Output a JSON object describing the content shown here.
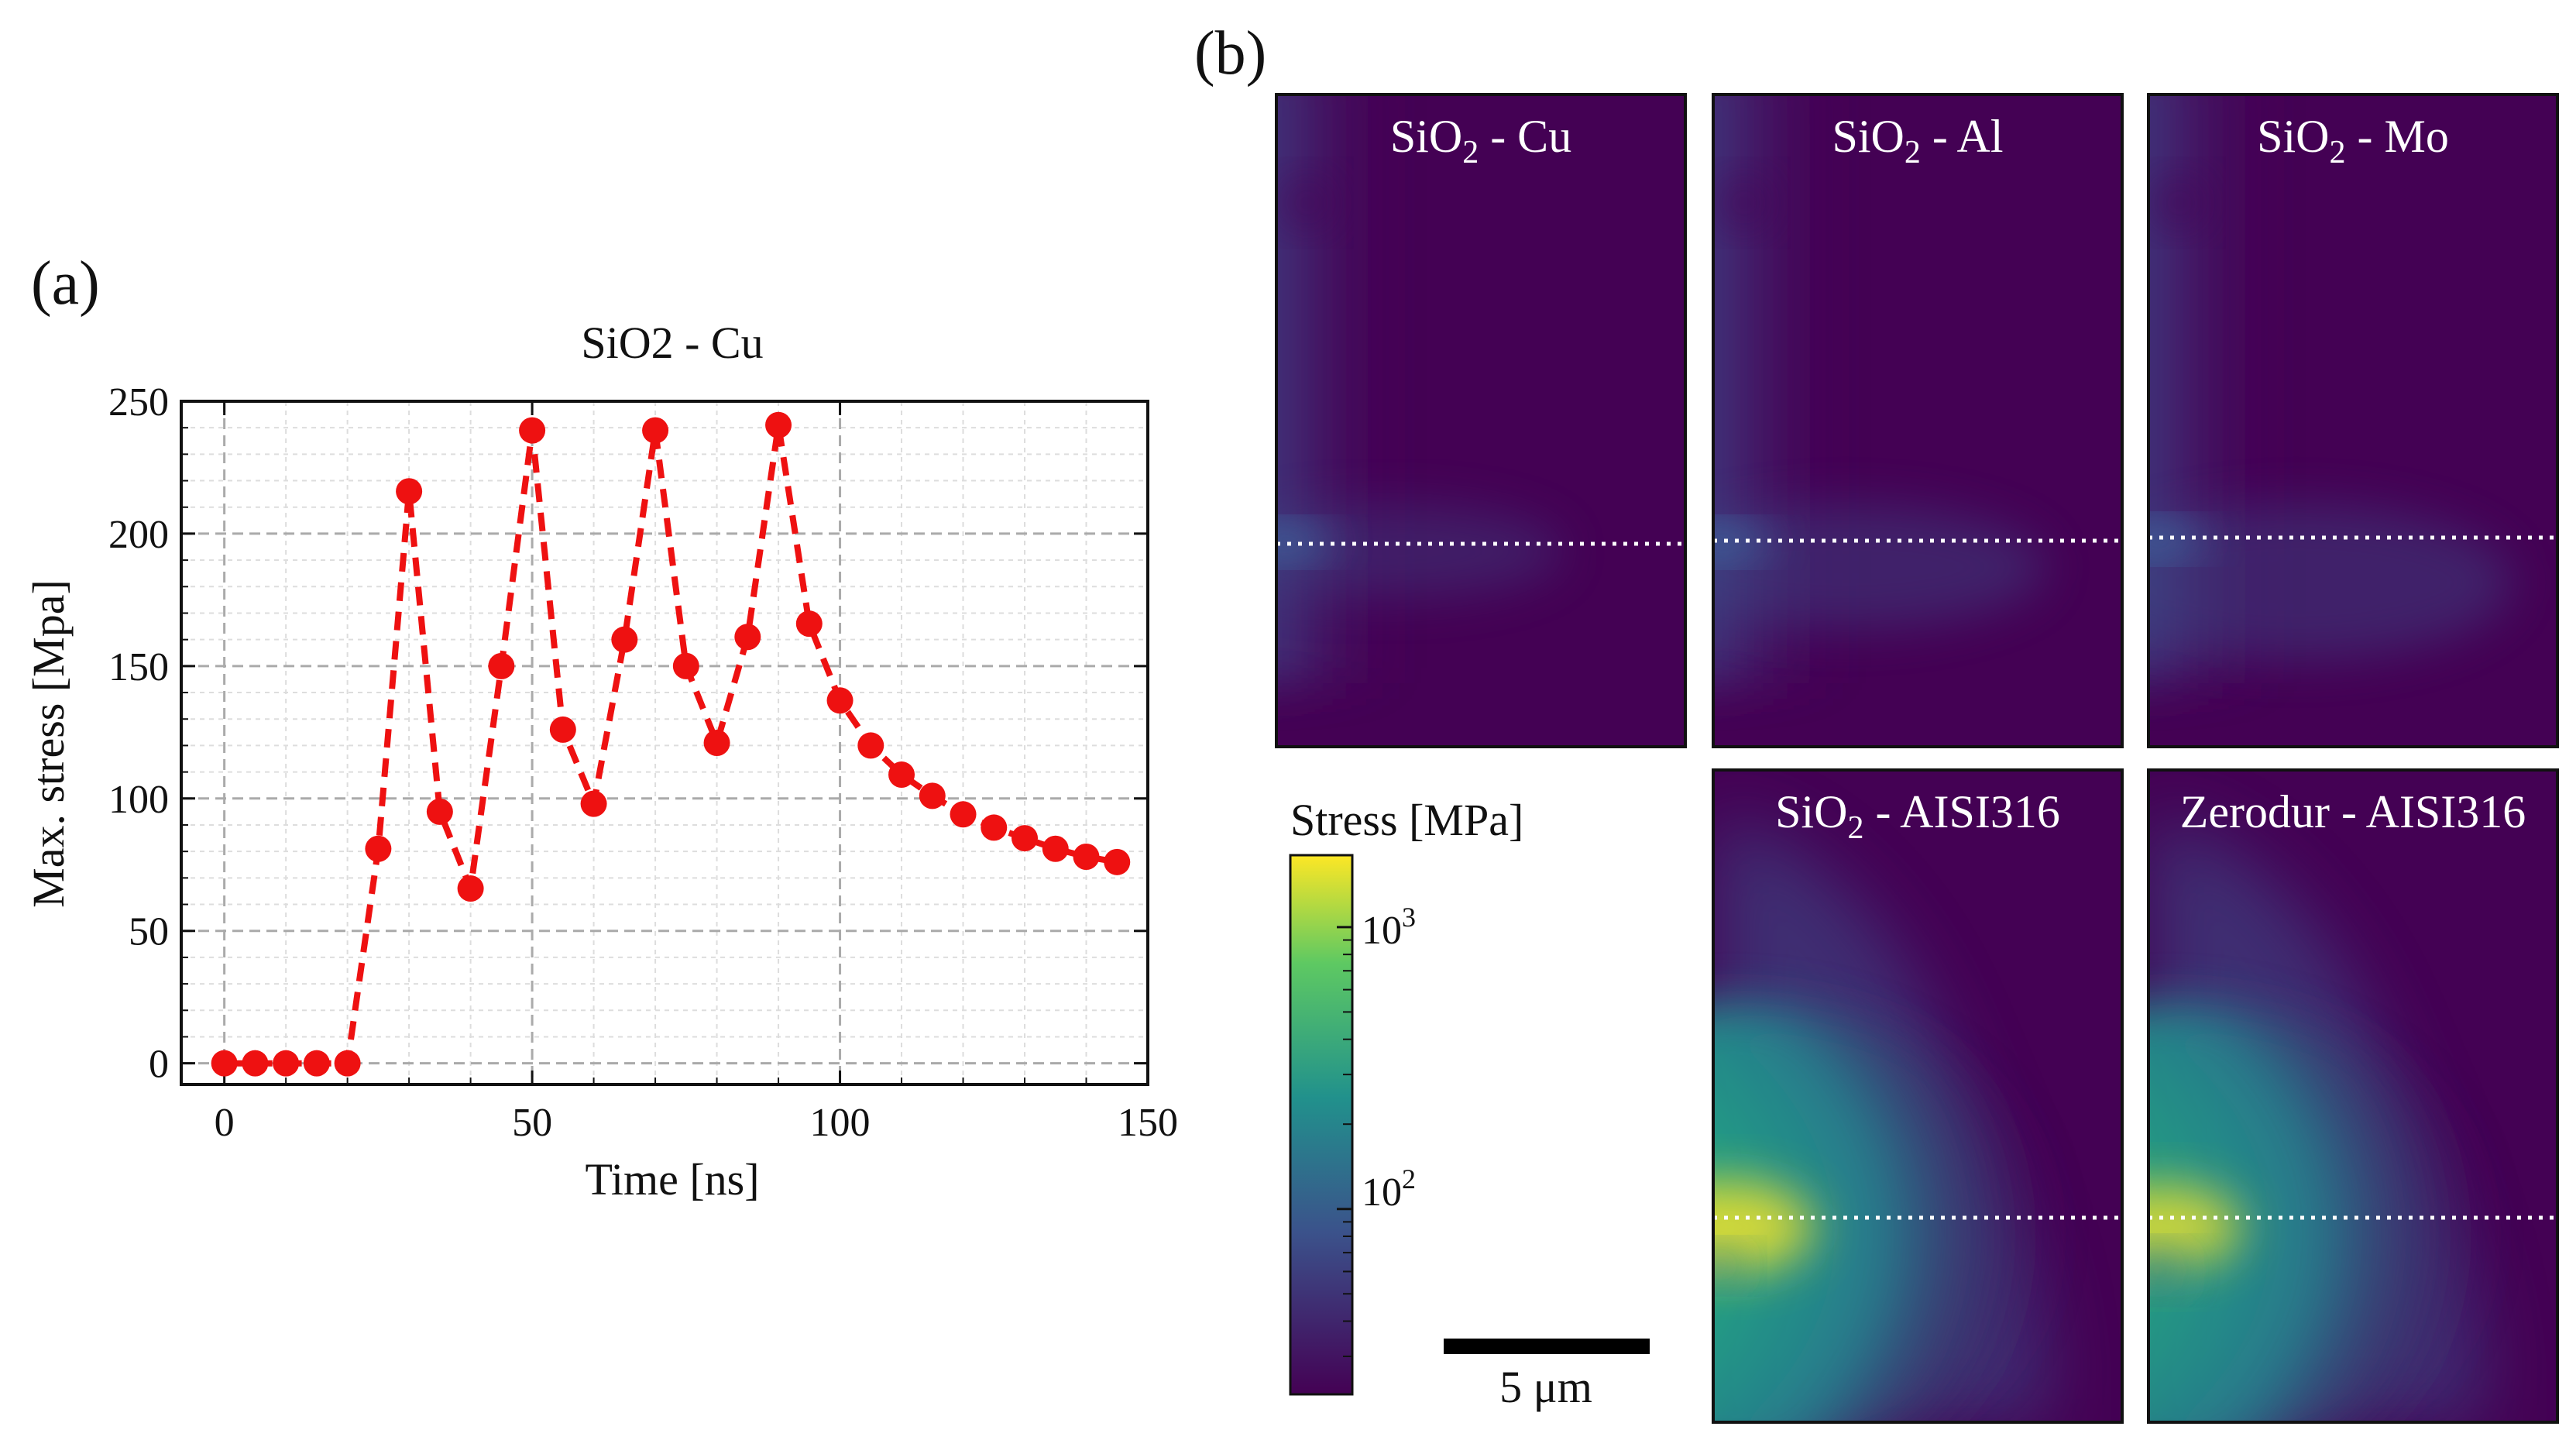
{
  "panel_a": {
    "label": "(a)",
    "chart_data": {
      "type": "line",
      "title": "SiO2 - Cu",
      "xlabel": "Time [ns]",
      "ylabel": "Max. stress [Mpa]",
      "xlim": [
        -7,
        150
      ],
      "ylim": [
        -8,
        250
      ],
      "xticks": [
        0,
        50,
        100,
        150
      ],
      "yticks": [
        0,
        50,
        100,
        150,
        200,
        250
      ],
      "grid": true,
      "series": [
        {
          "name": "Max. stress",
          "color": "#ee1111",
          "line_style": "dashed",
          "marker": "circle",
          "x": [
            0,
            5,
            10,
            15,
            20,
            25,
            30,
            35,
            40,
            45,
            50,
            55,
            60,
            65,
            70,
            75,
            80,
            85,
            90,
            95,
            100,
            105,
            110,
            115,
            120,
            125,
            130,
            135,
            140,
            145
          ],
          "y": [
            0,
            0,
            0,
            0,
            0,
            81,
            216,
            95,
            66,
            150,
            239,
            126,
            98,
            160,
            239,
            150,
            121,
            161,
            241,
            166,
            137,
            120,
            109,
            101,
            94,
            89,
            85,
            81,
            78,
            76
          ]
        }
      ]
    }
  },
  "panel_b": {
    "label": "(b)",
    "maps": [
      {
        "title": "SiO",
        "sub": "2",
        "suffix": " - Cu",
        "type": "small"
      },
      {
        "title": "SiO",
        "sub": "2",
        "suffix": " - Al",
        "type": "small"
      },
      {
        "title": "SiO",
        "sub": "2",
        "suffix": " - Mo",
        "type": "small"
      },
      {
        "title": "SiO",
        "sub": "2",
        "suffix": " - AISI316",
        "type": "large"
      },
      {
        "title": "Zerodur - AISI316",
        "sub": "",
        "suffix": "",
        "type": "large"
      }
    ],
    "colorbar": {
      "label": "Stress [MPa]",
      "scale": "log",
      "tick_labels": [
        {
          "base": "10",
          "exp": "3",
          "value": 1000
        },
        {
          "base": "10",
          "exp": "2",
          "value": 100
        }
      ],
      "colormap": [
        "#440154",
        "#3b528b",
        "#21918c",
        "#5ec962",
        "#fde725"
      ]
    },
    "scale_bar": {
      "label": "5 μm"
    }
  }
}
